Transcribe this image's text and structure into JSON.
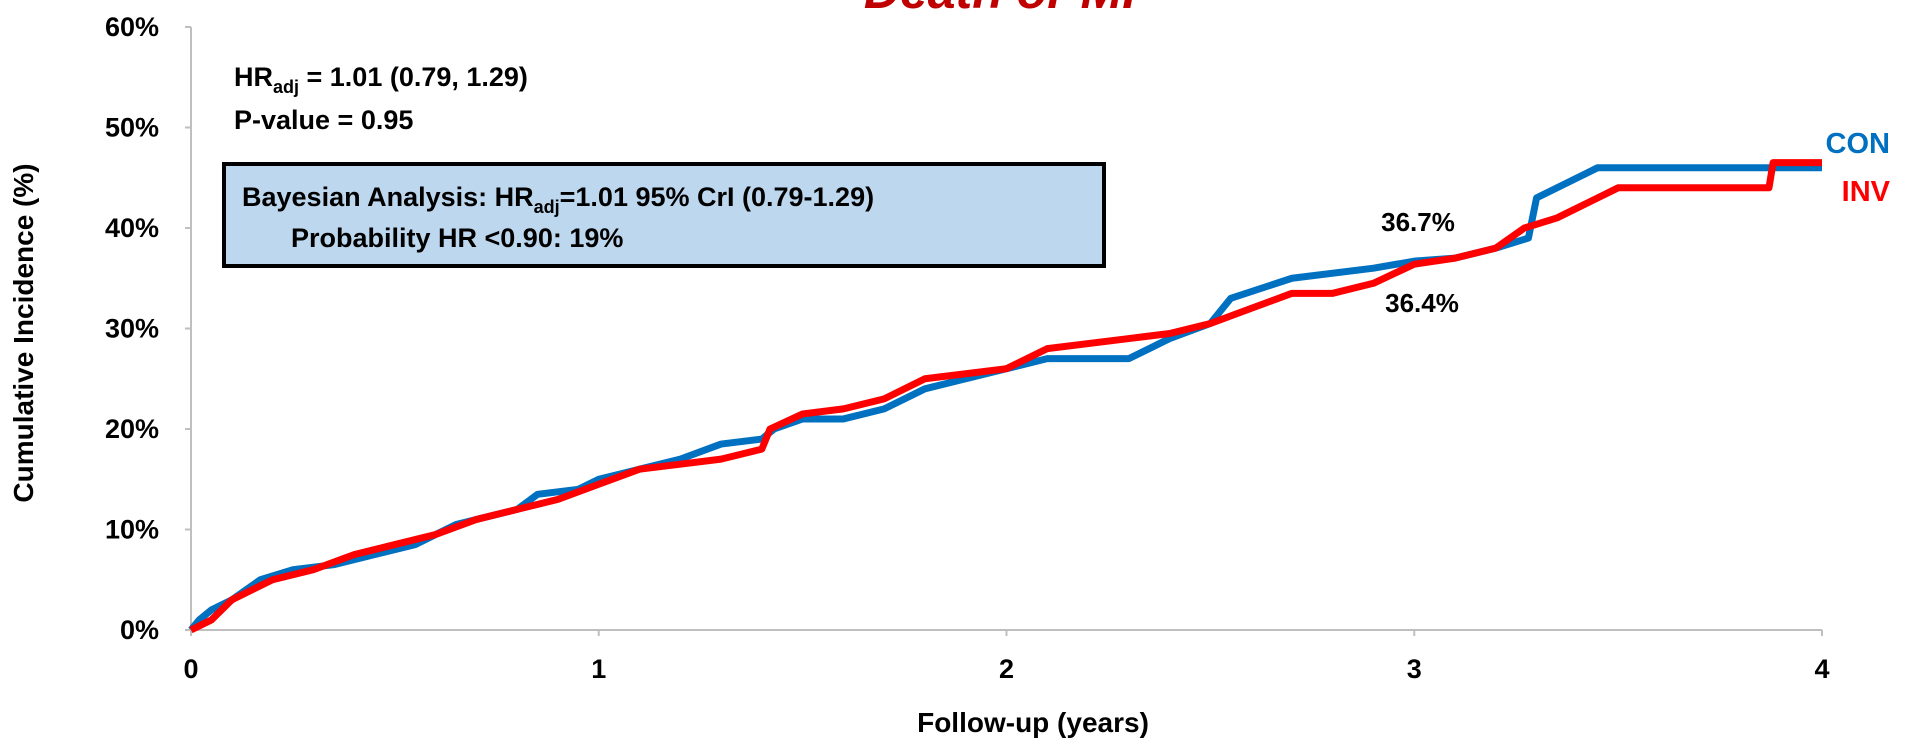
{
  "chart_data": {
    "type": "line",
    "title": "Death or MI",
    "x_label": "Follow-up (years)",
    "y_label": "Cumulative Incidence (%)",
    "xlim": [
      0,
      4
    ],
    "xticks": [
      0,
      1,
      2,
      3,
      4
    ],
    "ylim": [
      0,
      60
    ],
    "yticks": [
      {
        "value": 0,
        "label": "0%"
      },
      {
        "value": 10,
        "label": "10%"
      },
      {
        "value": 20,
        "label": "20%"
      },
      {
        "value": 30,
        "label": "30%"
      },
      {
        "value": 40,
        "label": "40%"
      },
      {
        "value": 50,
        "label": "50%"
      },
      {
        "value": 60,
        "label": "60%"
      }
    ],
    "hr_annotation": {
      "main": "HR",
      "sub": "adj",
      "rest": " = 1.01 (0.79, 1.29)"
    },
    "p_value": "P-value = 0.95",
    "bayesian_box": {
      "line1": {
        "main": "Bayesian Analysis: HR",
        "sub": "adj",
        "rest": "=1.01 95% CrI (0.79-1.29)"
      },
      "line2": "Probability HR <0.90: 19%"
    },
    "point_annotations": [
      "36.7%",
      "36.4%"
    ],
    "series": [
      {
        "name": "CON",
        "color": "#0070c0",
        "x": [
          0,
          0.02,
          0.05,
          0.1,
          0.17,
          0.25,
          0.35,
          0.45,
          0.55,
          0.65,
          0.8,
          0.85,
          0.95,
          1.0,
          1.1,
          1.2,
          1.3,
          1.4,
          1.43,
          1.5,
          1.6,
          1.7,
          1.8,
          1.9,
          2.0,
          2.1,
          2.3,
          2.4,
          2.5,
          2.55,
          2.7,
          2.9,
          3.0,
          3.1,
          3.2,
          3.28,
          3.3,
          3.4,
          3.45,
          4.0
        ],
        "values": [
          0,
          1,
          2,
          3,
          5,
          6,
          6.5,
          7.5,
          8.5,
          10.5,
          12,
          13.5,
          14,
          15,
          16,
          17,
          18.5,
          19,
          20,
          21,
          21,
          22,
          24,
          25,
          26,
          27,
          27,
          29,
          30.5,
          33,
          35,
          36,
          36.7,
          37,
          38,
          39,
          43,
          45,
          46,
          46
        ]
      },
      {
        "name": "INV",
        "color": "#ff0000",
        "x": [
          0,
          0.05,
          0.1,
          0.2,
          0.3,
          0.4,
          0.5,
          0.6,
          0.7,
          0.8,
          0.9,
          1.0,
          1.1,
          1.2,
          1.3,
          1.4,
          1.42,
          1.5,
          1.6,
          1.7,
          1.8,
          1.9,
          2.0,
          2.1,
          2.3,
          2.4,
          2.5,
          2.6,
          2.7,
          2.8,
          2.9,
          3.0,
          3.1,
          3.2,
          3.27,
          3.35,
          3.45,
          3.5,
          3.87,
          3.88,
          4.0
        ],
        "values": [
          0,
          1,
          3,
          5,
          6,
          7.5,
          8.5,
          9.5,
          11,
          12,
          13,
          14.5,
          16,
          16.5,
          17,
          18,
          20,
          21.5,
          22,
          23,
          25,
          25.5,
          26,
          28,
          29,
          29.5,
          30.5,
          32,
          33.5,
          33.5,
          34.5,
          36.4,
          37,
          38,
          40,
          41,
          43,
          44,
          44,
          46.5,
          46.5
        ]
      }
    ]
  }
}
